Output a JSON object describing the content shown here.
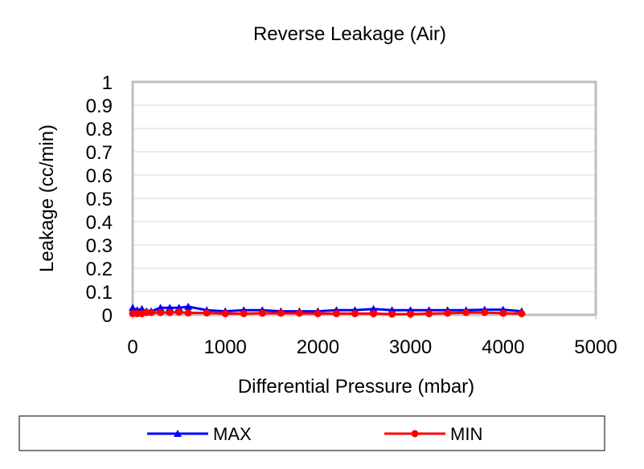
{
  "chart_data": {
    "type": "line",
    "title": "Reverse Leakage (Air)",
    "xlabel": "Differential Pressure (mbar)",
    "ylabel": "Leakage (cc/min)",
    "xlim": [
      0,
      5000
    ],
    "ylim": [
      0,
      1
    ],
    "xticks": [
      "0",
      "1000",
      "2000",
      "3000",
      "4000",
      "5000"
    ],
    "yticks": [
      "0",
      "0.1",
      "0.2",
      "0.3",
      "0.4",
      "0.5",
      "0.6",
      "0.7",
      "0.8",
      "0.9",
      "1"
    ],
    "grid": true,
    "legend": "bottom",
    "x": [
      0,
      50,
      100,
      150,
      200,
      300,
      400,
      500,
      600,
      800,
      1000,
      1200,
      1400,
      1600,
      1800,
      2000,
      2200,
      2400,
      2600,
      2800,
      3000,
      3200,
      3400,
      3600,
      3800,
      4000,
      4200
    ],
    "series": [
      {
        "name": "MAX",
        "color": "#0000FF",
        "marker": "triangle",
        "values": [
          0.03,
          0.02,
          0.025,
          0.015,
          0.015,
          0.03,
          0.03,
          0.03,
          0.035,
          0.02,
          0.015,
          0.02,
          0.02,
          0.015,
          0.015,
          0.015,
          0.02,
          0.02,
          0.025,
          0.02,
          0.02,
          0.02,
          0.02,
          0.02,
          0.022,
          0.022,
          0.015
        ]
      },
      {
        "name": "MIN",
        "color": "#FF0000",
        "marker": "circle",
        "values": [
          0.005,
          0.005,
          0.005,
          0.01,
          0.01,
          0.01,
          0.01,
          0.012,
          0.008,
          0.008,
          0.005,
          0.005,
          0.007,
          0.007,
          0.007,
          0.005,
          0.005,
          0.005,
          0.005,
          0.003,
          0.003,
          0.005,
          0.007,
          0.01,
          0.01,
          0.007,
          0.005
        ]
      }
    ]
  }
}
